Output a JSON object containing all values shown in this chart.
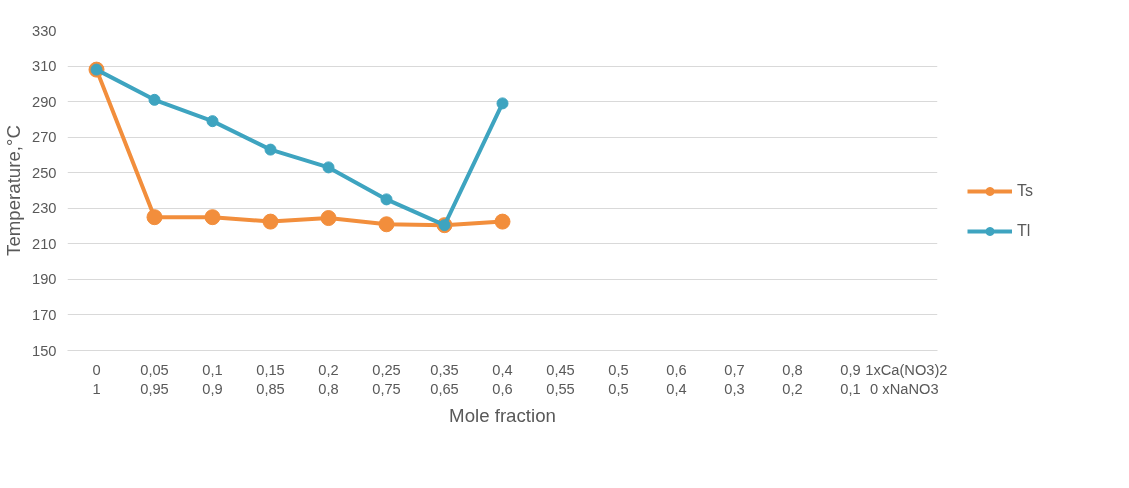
{
  "chart_data": {
    "type": "line",
    "xlabel": "Mole fraction",
    "ylabel": "Temperature,°C",
    "categories": [
      "0\n1",
      "0,05\n0,95",
      "0,1\n0,9",
      "0,15\n0,85",
      "0,2\n0,8",
      "0,25\n0,75",
      "0,35\n0,65",
      "0,4\n0,6",
      "0,45\n0,55",
      "0,5\n0,5",
      "0,6\n0,4",
      "0,7\n0,3",
      "0,8\n0,2",
      "0,9\n0,1",
      "1xCa(NO3)2\n0  xNaNO3"
    ],
    "series": [
      {
        "name": "Ts",
        "color": "#f28e3c",
        "values": [
          308,
          225,
          225,
          222.5,
          224.5,
          221,
          220.5,
          222.5,
          null,
          null,
          null,
          null,
          null,
          null,
          null
        ]
      },
      {
        "name": "Tl",
        "color": "#3ea4c0",
        "values": [
          308,
          291,
          279,
          263,
          253,
          235,
          220.5,
          289,
          null,
          null,
          null,
          null,
          null,
          null,
          null
        ]
      }
    ],
    "ylim": [
      150,
      330
    ],
    "yticks": [
      150,
      170,
      190,
      210,
      230,
      250,
      270,
      290,
      310,
      330
    ],
    "grid": "y",
    "legend": "right",
    "marker": "circle",
    "line_style": "solid"
  }
}
